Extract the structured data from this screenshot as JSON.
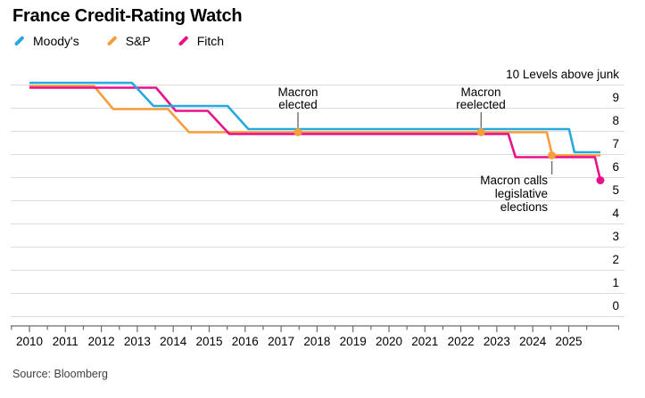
{
  "header": {
    "title": "France Credit-Rating Watch"
  },
  "legend": {
    "items": [
      {
        "label": "Moody's",
        "color": "#25A9E0"
      },
      {
        "label": "S&P",
        "color": "#F79D3C"
      },
      {
        "label": "Fitch",
        "color": "#E8118C"
      }
    ]
  },
  "axes": {
    "y": {
      "top_label": "10 Levels above junk",
      "ticks": [
        "9",
        "8",
        "7",
        "6",
        "5",
        "4",
        "3",
        "2",
        "1",
        "0"
      ]
    },
    "x": {
      "ticks": [
        "2010",
        "2011",
        "2012",
        "2013",
        "2014",
        "2015",
        "2016",
        "2017",
        "2018",
        "2019",
        "2020",
        "2021",
        "2022",
        "2023",
        "2024",
        "2025"
      ]
    }
  },
  "annotations": [
    {
      "lines": [
        "Macron",
        "elected"
      ]
    },
    {
      "lines": [
        "Macron",
        "reelected"
      ]
    },
    {
      "lines": [
        "Macron calls",
        "legislative",
        "elections"
      ]
    }
  ],
  "source": {
    "text": "Source: Bloomberg"
  },
  "chart_data": {
    "type": "line",
    "title": "France Credit-Rating Watch",
    "ylabel": "Levels above junk",
    "legend_position": "top-left",
    "grid": "horizontal",
    "x_range": [
      2009.5,
      2026
    ],
    "y_range": [
      0,
      10
    ],
    "series": [
      {
        "name": "Moody's",
        "color": "#25A9E0",
        "end_dot": false,
        "points": [
          [
            2010.0,
            10
          ],
          [
            2012.85,
            10
          ],
          [
            2013.45,
            9
          ],
          [
            2015.51,
            9
          ],
          [
            2016.09,
            8
          ],
          [
            2025.01,
            8
          ],
          [
            2025.16,
            7
          ],
          [
            2025.88,
            7
          ]
        ]
      },
      {
        "name": "S&P",
        "color": "#F79D3C",
        "end_dot": false,
        "points": [
          [
            2010.0,
            10
          ],
          [
            2011.79,
            10
          ],
          [
            2012.33,
            9
          ],
          [
            2013.85,
            9
          ],
          [
            2014.44,
            8
          ],
          [
            2024.39,
            8
          ],
          [
            2024.54,
            7
          ],
          [
            2025.88,
            7
          ]
        ]
      },
      {
        "name": "Fitch",
        "color": "#E8118C",
        "end_dot": true,
        "points": [
          [
            2010.0,
            10
          ],
          [
            2013.52,
            10
          ],
          [
            2014.07,
            9
          ],
          [
            2014.96,
            9
          ],
          [
            2015.56,
            8
          ],
          [
            2023.32,
            8
          ],
          [
            2023.52,
            7
          ],
          [
            2025.73,
            7
          ],
          [
            2025.88,
            6
          ]
        ]
      }
    ],
    "markers": [
      {
        "label": "Macron elected",
        "date": 2017.47,
        "level": 8,
        "series": "S&P"
      },
      {
        "label": "Macron reelected",
        "date": 2022.56,
        "level": 8,
        "series": "S&P"
      },
      {
        "label": "Macron calls legislative elections",
        "date": 2024.53,
        "level": 7,
        "series": "S&P"
      }
    ]
  }
}
